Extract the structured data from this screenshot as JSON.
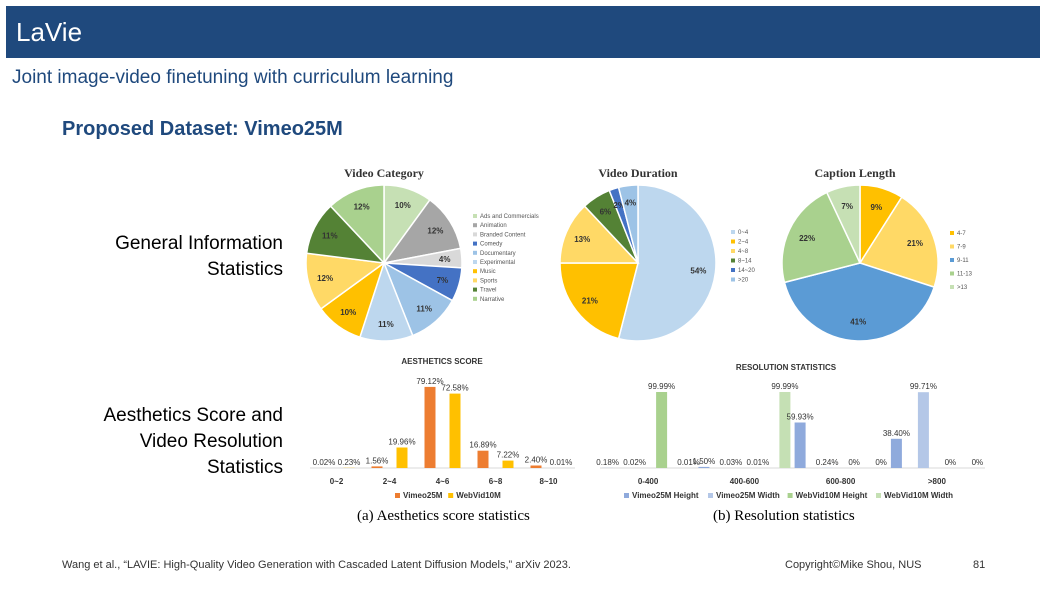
{
  "header": {
    "title": "LaVie"
  },
  "subtitle": "Joint image-video finetuning with curriculum learning",
  "heading": "Proposed Dataset: Vimeo25M",
  "row_labels": {
    "general": [
      "General Information",
      "Statistics"
    ],
    "aesthetics": [
      "Aesthetics Score and",
      "Video Resolution",
      "Statistics"
    ]
  },
  "captions": {
    "a": "(a) Aesthetics score statistics",
    "b": "(b) Resolution statistics"
  },
  "footer": {
    "citation": "Wang et al., “LAVIE: High-Quality Video Generation with Cascaded Latent Diffusion Models,” arXiv 2023.",
    "copyright": "Copyright©Mike Shou, NUS",
    "page": "81"
  },
  "chart_data": [
    {
      "type": "pie",
      "title": "Video Category",
      "labels": [
        "Ads and Commercials",
        "Animation",
        "Branded Content",
        "Comedy",
        "Documentary",
        "Experimental",
        "Music",
        "Sports",
        "Travel",
        "Narrative"
      ],
      "values": [
        10,
        12,
        4,
        7,
        11,
        11,
        10,
        12,
        11,
        12
      ],
      "value_labels": [
        "10%",
        "12%",
        "4%",
        "7%",
        "11%",
        "11%",
        "10%",
        "12%",
        "11%",
        "12%"
      ],
      "colors": [
        "#c6e0b4",
        "#a6a6a6",
        "#d9d9d9",
        "#4472c4",
        "#9dc3e6",
        "#bdd7ee",
        "#ffc000",
        "#ffd966",
        "#548235",
        "#a9d18e"
      ],
      "legend": "right"
    },
    {
      "type": "pie",
      "title": "Video Duration",
      "labels": [
        "0~4",
        "2~4",
        "4~8",
        "8~14",
        "14~20",
        ">20"
      ],
      "values": [
        54,
        21,
        13,
        6,
        2,
        4
      ],
      "value_labels": [
        "54%",
        "21%",
        "13%",
        "6%",
        "2%",
        "4%"
      ],
      "colors": [
        "#bdd7ee",
        "#ffc000",
        "#ffd966",
        "#548235",
        "#4472c4",
        "#9dc3e6"
      ],
      "legend": "right"
    },
    {
      "type": "pie",
      "title": "Caption Length",
      "labels": [
        "4-7",
        "7-9",
        "9-11",
        "11-13",
        ">13"
      ],
      "values": [
        9,
        21,
        41,
        22,
        7
      ],
      "value_labels": [
        "9%",
        "21%",
        "41%",
        "22%",
        "7%"
      ],
      "colors": [
        "#ffc000",
        "#ffd966",
        "#5b9bd5",
        "#a9d18e",
        "#c6e0b4"
      ],
      "legend": "right"
    },
    {
      "type": "bar",
      "title": "AESTHETICS SCORE",
      "categories": [
        "0~2",
        "2~4",
        "4~6",
        "6~8",
        "8~10"
      ],
      "series": [
        {
          "name": "Vimeo25M",
          "color": "#ed7d31",
          "values": [
            0.02,
            1.56,
            79.12,
            16.89,
            2.4
          ],
          "labels": [
            "0.02%",
            "1.56%",
            "79.12%",
            "16.89%",
            "2.40%"
          ]
        },
        {
          "name": "WebVid10M",
          "color": "#ffc000",
          "values": [
            0.23,
            19.96,
            72.58,
            7.22,
            0.01
          ],
          "labels": [
            "0.23%",
            "19.96%",
            "72.58%",
            "7.22%",
            "0.01%"
          ]
        }
      ],
      "ylim": [
        0,
        80
      ],
      "legend": "bottom"
    },
    {
      "type": "bar",
      "title": "RESOLUTION STATISTICS",
      "categories": [
        "0-400",
        "400-600",
        "600-800",
        ">800"
      ],
      "series": [
        {
          "name": "Vimeo25M Height",
          "color": "#8faadc",
          "values": [
            0.18,
            1.5,
            59.93,
            38.4
          ],
          "labels": [
            "0.18%",
            "1.50%",
            "59.93%",
            "38.40%"
          ]
        },
        {
          "name": "Vimeo25M Width",
          "color": "#b4c7e7",
          "values": [
            0.02,
            0.03,
            0.24,
            99.71
          ],
          "labels": [
            "0.02%",
            "0.03%",
            "0.24%",
            "99.71%"
          ]
        },
        {
          "name": "WebVid10M Height",
          "color": "#a9d18e",
          "values": [
            99.99,
            0.01,
            0,
            0
          ],
          "labels": [
            "99.99%",
            "0.01%",
            "0%",
            "0%"
          ]
        },
        {
          "name": "WebVid10M Width",
          "color": "#c5e0b4",
          "values": [
            0.01,
            99.99,
            0,
            0
          ],
          "labels": [
            "0.01%",
            "99.99%",
            "0%",
            "0%"
          ]
        }
      ],
      "ylim": [
        0,
        100
      ],
      "legend": "bottom"
    }
  ]
}
